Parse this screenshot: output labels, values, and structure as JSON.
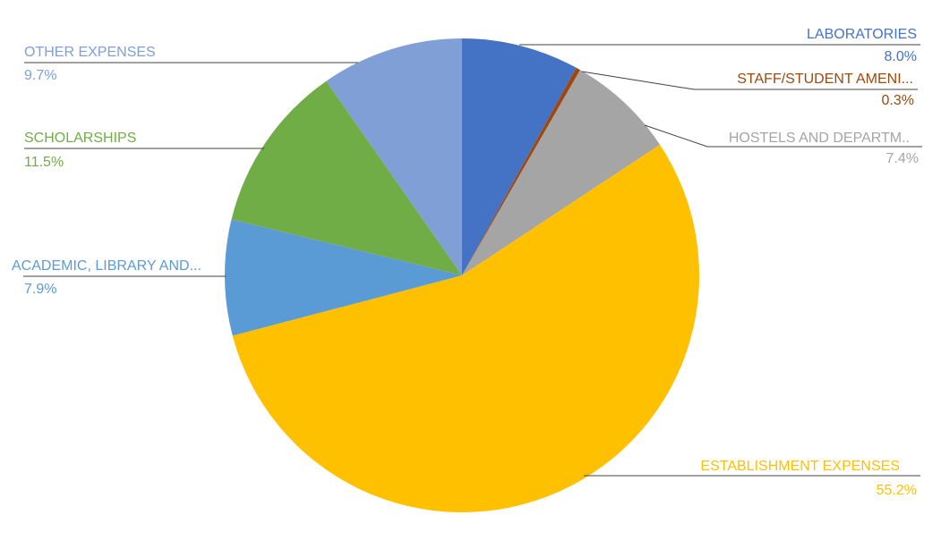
{
  "chart_data": {
    "type": "pie",
    "title": "",
    "start_angle_deg": 0,
    "direction": "clockwise",
    "legend": "none",
    "data_labels": "outside-with-leader-lines",
    "slices": [
      {
        "label": "LABORATORIES",
        "value": 8.0,
        "value_label": "8.0%",
        "color": "#4472C4"
      },
      {
        "label": "STAFF/STUDENT AMENI...",
        "value": 0.3,
        "value_label": "0.3%",
        "color": "#9E480E"
      },
      {
        "label": "HOSTELS AND DEPARTM..",
        "value": 7.4,
        "value_label": "7.4%",
        "color": "#A5A5A5"
      },
      {
        "label": "ESTABLISHMENT EXPENSES",
        "value": 55.2,
        "value_label": "55.2%",
        "color": "#FFC000"
      },
      {
        "label": "ACADEMIC, LIBRARY AND...",
        "value": 7.9,
        "value_label": "7.9%",
        "color": "#5B9BD5"
      },
      {
        "label": "SCHOLARSHIPS",
        "value": 11.5,
        "value_label": "11.5%",
        "color": "#70AD47"
      },
      {
        "label": "OTHER EXPENSES",
        "value": 9.7,
        "value_label": "9.7%",
        "color": "#7F9FD6"
      }
    ]
  }
}
